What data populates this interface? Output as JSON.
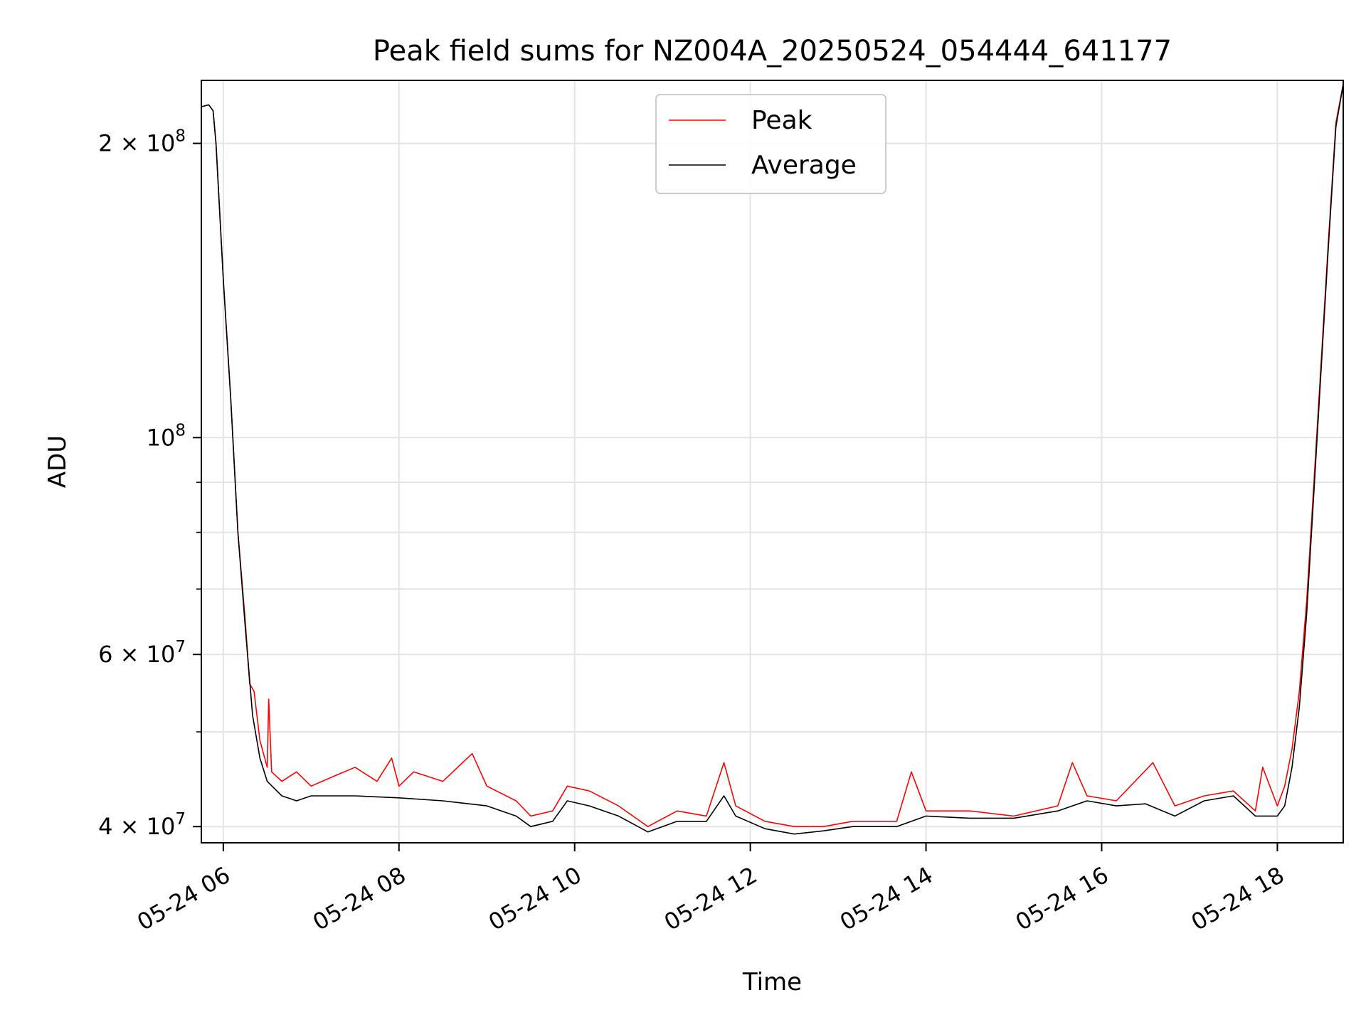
{
  "chart_data": {
    "type": "line",
    "title": "Peak field sums for NZ004A_20250524_054444_641177",
    "xlabel": "Time",
    "ylabel": "ADU",
    "y_scale": "log",
    "grid": true,
    "legend_position": "top-center",
    "xlim": [
      "2025-05-24T05:45",
      "2025-05-24T18:45"
    ],
    "ylim": [
      38500000,
      232000000
    ],
    "x_ticks": [
      "05-24 06",
      "05-24 08",
      "05-24 10",
      "05-24 12",
      "05-24 14",
      "05-24 16",
      "05-24 18"
    ],
    "x_tick_times": [
      "2025-05-24T06:00",
      "2025-05-24T08:00",
      "2025-05-24T10:00",
      "2025-05-24T12:00",
      "2025-05-24T14:00",
      "2025-05-24T16:00",
      "2025-05-24T18:00"
    ],
    "y_ticks": [
      {
        "value": 40000000,
        "coef": "4",
        "exp": "7"
      },
      {
        "value": 60000000,
        "coef": "6",
        "exp": "7"
      },
      {
        "value": 100000000,
        "coef": "",
        "exp": "8"
      },
      {
        "value": 200000000,
        "coef": "2",
        "exp": "8"
      }
    ],
    "y_minor_ticks": [
      50000000,
      70000000,
      80000000,
      90000000
    ],
    "series": [
      {
        "name": "Peak",
        "color": "#ff0000",
        "points": [
          [
            "2025-05-24T05:45",
            218000000
          ],
          [
            "2025-05-24T05:50",
            219000000
          ],
          [
            "2025-05-24T05:53",
            216000000
          ],
          [
            "2025-05-24T05:55",
            200000000
          ],
          [
            "2025-05-24T06:00",
            145000000
          ],
          [
            "2025-05-24T06:05",
            110000000
          ],
          [
            "2025-05-24T06:10",
            80000000
          ],
          [
            "2025-05-24T06:15",
            65000000
          ],
          [
            "2025-05-24T06:18",
            56000000
          ],
          [
            "2025-05-24T06:21",
            55000000
          ],
          [
            "2025-05-24T06:25",
            49000000
          ],
          [
            "2025-05-24T06:30",
            46000000
          ],
          [
            "2025-05-24T06:31",
            54000000
          ],
          [
            "2025-05-24T06:33",
            45500000
          ],
          [
            "2025-05-24T06:40",
            44500000
          ],
          [
            "2025-05-24T06:50",
            45500000
          ],
          [
            "2025-05-24T07:00",
            44000000
          ],
          [
            "2025-05-24T07:15",
            45000000
          ],
          [
            "2025-05-24T07:30",
            46000000
          ],
          [
            "2025-05-24T07:45",
            44500000
          ],
          [
            "2025-05-24T07:55",
            47000000
          ],
          [
            "2025-05-24T08:00",
            44000000
          ],
          [
            "2025-05-24T08:10",
            45500000
          ],
          [
            "2025-05-24T08:30",
            44500000
          ],
          [
            "2025-05-24T08:50",
            47500000
          ],
          [
            "2025-05-24T09:00",
            44000000
          ],
          [
            "2025-05-24T09:20",
            42500000
          ],
          [
            "2025-05-24T09:30",
            41000000
          ],
          [
            "2025-05-24T09:45",
            41500000
          ],
          [
            "2025-05-24T09:55",
            44000000
          ],
          [
            "2025-05-24T10:10",
            43500000
          ],
          [
            "2025-05-24T10:30",
            42000000
          ],
          [
            "2025-05-24T10:50",
            40000000
          ],
          [
            "2025-05-24T11:10",
            41500000
          ],
          [
            "2025-05-24T11:30",
            41000000
          ],
          [
            "2025-05-24T11:42",
            46500000
          ],
          [
            "2025-05-24T11:50",
            42000000
          ],
          [
            "2025-05-24T12:10",
            40500000
          ],
          [
            "2025-05-24T12:30",
            40000000
          ],
          [
            "2025-05-24T12:50",
            40000000
          ],
          [
            "2025-05-24T13:10",
            40500000
          ],
          [
            "2025-05-24T13:40",
            40500000
          ],
          [
            "2025-05-24T13:50",
            45500000
          ],
          [
            "2025-05-24T14:00",
            41500000
          ],
          [
            "2025-05-24T14:30",
            41500000
          ],
          [
            "2025-05-24T15:00",
            41000000
          ],
          [
            "2025-05-24T15:30",
            42000000
          ],
          [
            "2025-05-24T15:40",
            46500000
          ],
          [
            "2025-05-24T15:50",
            43000000
          ],
          [
            "2025-05-24T16:10",
            42500000
          ],
          [
            "2025-05-24T16:35",
            46500000
          ],
          [
            "2025-05-24T16:50",
            42000000
          ],
          [
            "2025-05-24T17:10",
            43000000
          ],
          [
            "2025-05-24T17:30",
            43500000
          ],
          [
            "2025-05-24T17:45",
            41500000
          ],
          [
            "2025-05-24T17:50",
            46000000
          ],
          [
            "2025-05-24T18:00",
            42000000
          ],
          [
            "2025-05-24T18:05",
            44000000
          ],
          [
            "2025-05-24T18:10",
            48000000
          ],
          [
            "2025-05-24T18:15",
            55000000
          ],
          [
            "2025-05-24T18:20",
            68000000
          ],
          [
            "2025-05-24T18:25",
            90000000
          ],
          [
            "2025-05-24T18:30",
            120000000
          ],
          [
            "2025-05-24T18:35",
            160000000
          ],
          [
            "2025-05-24T18:40",
            210000000
          ],
          [
            "2025-05-24T18:45",
            230000000
          ]
        ]
      },
      {
        "name": "Average",
        "color": "#000000",
        "points": [
          [
            "2025-05-24T05:45",
            218000000
          ],
          [
            "2025-05-24T05:50",
            219000000
          ],
          [
            "2025-05-24T05:53",
            216000000
          ],
          [
            "2025-05-24T05:55",
            200000000
          ],
          [
            "2025-05-24T06:00",
            145000000
          ],
          [
            "2025-05-24T06:05",
            110000000
          ],
          [
            "2025-05-24T06:10",
            80000000
          ],
          [
            "2025-05-24T06:15",
            64000000
          ],
          [
            "2025-05-24T06:20",
            52000000
          ],
          [
            "2025-05-24T06:25",
            47000000
          ],
          [
            "2025-05-24T06:30",
            44500000
          ],
          [
            "2025-05-24T06:40",
            43000000
          ],
          [
            "2025-05-24T06:50",
            42500000
          ],
          [
            "2025-05-24T07:00",
            43000000
          ],
          [
            "2025-05-24T07:30",
            43000000
          ],
          [
            "2025-05-24T08:00",
            42800000
          ],
          [
            "2025-05-24T08:30",
            42500000
          ],
          [
            "2025-05-24T09:00",
            42000000
          ],
          [
            "2025-05-24T09:20",
            41000000
          ],
          [
            "2025-05-24T09:30",
            40000000
          ],
          [
            "2025-05-24T09:45",
            40500000
          ],
          [
            "2025-05-24T09:55",
            42500000
          ],
          [
            "2025-05-24T10:10",
            42000000
          ],
          [
            "2025-05-24T10:30",
            41000000
          ],
          [
            "2025-05-24T10:50",
            39500000
          ],
          [
            "2025-05-24T11:10",
            40500000
          ],
          [
            "2025-05-24T11:30",
            40500000
          ],
          [
            "2025-05-24T11:42",
            43000000
          ],
          [
            "2025-05-24T11:50",
            41000000
          ],
          [
            "2025-05-24T12:10",
            39800000
          ],
          [
            "2025-05-24T12:30",
            39300000
          ],
          [
            "2025-05-24T12:50",
            39600000
          ],
          [
            "2025-05-24T13:10",
            40000000
          ],
          [
            "2025-05-24T13:40",
            40000000
          ],
          [
            "2025-05-24T14:00",
            41000000
          ],
          [
            "2025-05-24T14:30",
            40800000
          ],
          [
            "2025-05-24T15:00",
            40800000
          ],
          [
            "2025-05-24T15:30",
            41500000
          ],
          [
            "2025-05-24T15:50",
            42500000
          ],
          [
            "2025-05-24T16:10",
            42000000
          ],
          [
            "2025-05-24T16:30",
            42200000
          ],
          [
            "2025-05-24T16:50",
            41000000
          ],
          [
            "2025-05-24T17:10",
            42500000
          ],
          [
            "2025-05-24T17:30",
            43000000
          ],
          [
            "2025-05-24T17:45",
            41000000
          ],
          [
            "2025-05-24T18:00",
            41000000
          ],
          [
            "2025-05-24T18:05",
            42000000
          ],
          [
            "2025-05-24T18:10",
            46000000
          ],
          [
            "2025-05-24T18:15",
            53000000
          ],
          [
            "2025-05-24T18:20",
            66000000
          ],
          [
            "2025-05-24T18:25",
            88000000
          ],
          [
            "2025-05-24T18:30",
            118000000
          ],
          [
            "2025-05-24T18:35",
            158000000
          ],
          [
            "2025-05-24T18:40",
            208000000
          ],
          [
            "2025-05-24T18:45",
            230000000
          ]
        ]
      }
    ]
  }
}
